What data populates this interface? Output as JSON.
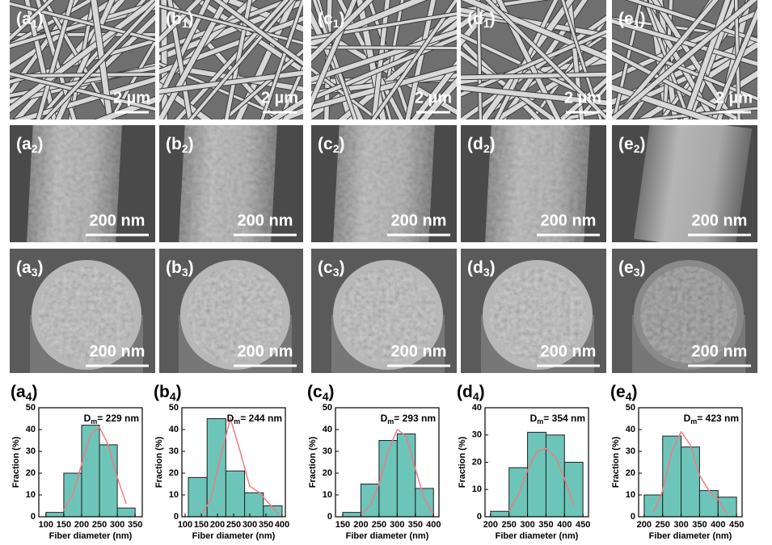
{
  "images": [
    {
      "label": [
        "(a",
        "1",
        ")"
      ],
      "scale": "2 µm"
    },
    {
      "label": [
        "(b",
        "1",
        ")"
      ],
      "scale": "2 µm"
    },
    {
      "label": [
        "(c",
        "1",
        ")"
      ],
      "scale": "2 µm"
    },
    {
      "label": [
        "(d",
        "1",
        ")"
      ],
      "scale": "2 µm"
    },
    {
      "label": [
        "(e",
        "1",
        ")"
      ],
      "scale": "2 µm"
    },
    {
      "label": [
        "(a",
        "2",
        ")"
      ],
      "scale": "200 nm"
    },
    {
      "label": [
        "(b",
        "2",
        ")"
      ],
      "scale": "200 nm"
    },
    {
      "label": [
        "(c",
        "2",
        ")"
      ],
      "scale": "200 nm"
    },
    {
      "label": [
        "(d",
        "2",
        ")"
      ],
      "scale": "200 nm"
    },
    {
      "label": [
        "(e",
        "2",
        ")"
      ],
      "scale": "200 nm"
    },
    {
      "label": [
        "(a",
        "3",
        ")"
      ],
      "scale": "200 nm"
    },
    {
      "label": [
        "(b",
        "3",
        ")"
      ],
      "scale": "200 nm"
    },
    {
      "label": [
        "(c",
        "3",
        ")"
      ],
      "scale": "200 nm"
    },
    {
      "label": [
        "(d",
        "3",
        ")"
      ],
      "scale": "200 nm"
    },
    {
      "label": [
        "(e",
        "3",
        ")"
      ],
      "scale": "200 nm"
    }
  ],
  "chart_data": [
    {
      "type": "histogram",
      "label": [
        "(a",
        "4",
        ")"
      ],
      "annotation": [
        "D",
        "m",
        "= 229 nm"
      ],
      "x_label": "Fiber diameter (nm)",
      "y_label": "Fraction (%)",
      "bins": [
        100,
        150,
        200,
        250,
        300,
        350
      ],
      "values": [
        2,
        20,
        42,
        33,
        4
      ],
      "color": "#6cc5b8",
      "fit": {
        "x": [
          150,
          175,
          200,
          225,
          250,
          275,
          300,
          325
        ],
        "values": [
          3,
          10,
          24,
          38,
          41,
          33,
          18,
          6
        ],
        "color": "#f07a86"
      },
      "xlim": [
        80,
        370
      ],
      "xticks": [
        100,
        150,
        200,
        250,
        300,
        350
      ],
      "ylim": [
        0,
        50
      ],
      "yticks": [
        0,
        10,
        20,
        30,
        40,
        50
      ]
    },
    {
      "type": "histogram",
      "label": [
        "(b",
        "4",
        ")"
      ],
      "annotation": [
        "D",
        "m",
        "= 244 nm"
      ],
      "x_label": "Fiber diameter (nm)",
      "y_label": "Fraction (%)",
      "bins": [
        110,
        168,
        226,
        284,
        342,
        400
      ],
      "values": [
        18,
        45,
        21,
        11,
        5
      ],
      "color": "#6cc5b8",
      "fit": {
        "x": [
          150,
          180,
          210,
          240,
          270,
          300,
          330,
          360,
          390
        ],
        "values": [
          1,
          8,
          28,
          45,
          30,
          14,
          11,
          6,
          1
        ],
        "color": "#f07a86"
      },
      "xlim": [
        90,
        410
      ],
      "xticks": [
        100,
        150,
        200,
        250,
        300,
        350,
        400
      ],
      "ylim": [
        0,
        50
      ],
      "yticks": [
        0,
        10,
        20,
        30,
        40,
        50
      ]
    },
    {
      "type": "histogram",
      "label": [
        "(c",
        "4",
        ")"
      ],
      "annotation": [
        "D",
        "m",
        "= 293 nm"
      ],
      "x_label": "Fiber diameter (nm)",
      "y_label": "Fraction (%)",
      "bins": [
        150,
        200,
        250,
        300,
        350,
        400
      ],
      "values": [
        2,
        15,
        35,
        38,
        13
      ],
      "color": "#6cc5b8",
      "fit": {
        "x": [
          200,
          225,
          250,
          275,
          300,
          325,
          350,
          375,
          400
        ],
        "values": [
          1,
          5,
          15,
          30,
          40,
          37,
          22,
          8,
          1
        ],
        "color": "#f07a86"
      },
      "xlim": [
        130,
        415
      ],
      "xticks": [
        150,
        200,
        250,
        300,
        350,
        400
      ],
      "ylim": [
        0,
        50
      ],
      "yticks": [
        0,
        10,
        20,
        30,
        40,
        50
      ]
    },
    {
      "type": "histogram",
      "label": [
        "(d",
        "4",
        ")"
      ],
      "annotation": [
        "D",
        "m",
        "= 354 nm"
      ],
      "x_label": "Fiber diameter (nm)",
      "y_label": "Fraction (%)",
      "bins": [
        200,
        250,
        300,
        350,
        400,
        450
      ],
      "values": [
        2,
        18,
        31,
        30,
        20
      ],
      "color": "#6cc5b8",
      "fit": {
        "x": [
          250,
          275,
          300,
          325,
          350,
          375,
          400,
          425
        ],
        "values": [
          2,
          8,
          17,
          24,
          25,
          22,
          14,
          4
        ],
        "color": "#f07a86"
      },
      "xlim": [
        185,
        465
      ],
      "xticks": [
        200,
        250,
        300,
        350,
        400,
        450
      ],
      "ylim": [
        0,
        40
      ],
      "yticks": [
        0,
        10,
        20,
        30,
        40
      ]
    },
    {
      "type": "histogram",
      "label": [
        "(e",
        "4",
        ")"
      ],
      "annotation": [
        "D",
        "m",
        "= 423 nm"
      ],
      "x_label": "Fiber diameter (nm)",
      "y_label": "Fraction (%)",
      "bins": [
        200,
        250,
        300,
        350,
        400,
        450
      ],
      "values": [
        10,
        37,
        32,
        12,
        9
      ],
      "color": "#6cc5b8",
      "fit": {
        "x": [
          225,
          250,
          275,
          300,
          325,
          350,
          375,
          400,
          425
        ],
        "values": [
          2,
          12,
          30,
          39,
          33,
          19,
          12,
          8,
          1
        ],
        "color": "#f07a86"
      },
      "xlim": [
        185,
        465
      ],
      "xticks": [
        200,
        250,
        300,
        350,
        400,
        450
      ],
      "ylim": [
        0,
        50
      ],
      "yticks": [
        0,
        10,
        20,
        30,
        40,
        50
      ]
    }
  ]
}
